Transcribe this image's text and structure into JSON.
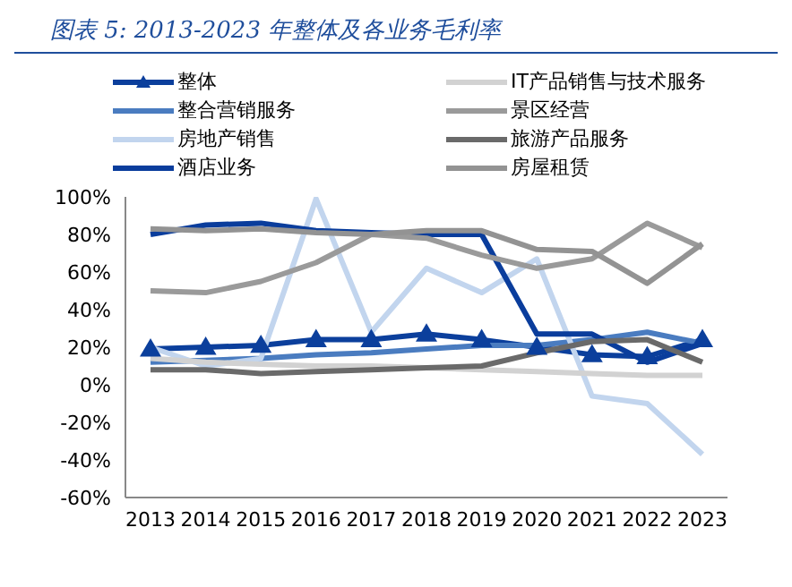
{
  "chart_data": {
    "type": "line",
    "title": "图表 5:  2013-2023 年整体及各业务毛利率",
    "categories": [
      "2013",
      "2014",
      "2015",
      "2016",
      "2017",
      "2018",
      "2019",
      "2020",
      "2021",
      "2022",
      "2023"
    ],
    "series": [
      {
        "name": "整体",
        "color": "#0b3f9c",
        "marker": "triangle",
        "values": [
          19,
          20,
          21,
          24,
          24,
          27,
          24,
          20,
          16,
          15,
          24
        ]
      },
      {
        "name": "整合营销服务",
        "color": "#4a7cc0",
        "values": [
          12,
          13,
          14,
          16,
          17,
          19,
          21,
          21,
          24,
          28,
          22
        ]
      },
      {
        "name": "房地产销售",
        "color": "#c2d5ee",
        "values": [
          20,
          10,
          14,
          99,
          28,
          62,
          49,
          67,
          -6,
          -10,
          -37
        ]
      },
      {
        "name": "酒店业务",
        "color": "#0a3d9c",
        "values": [
          80,
          85,
          86,
          82,
          81,
          80,
          80,
          27,
          27,
          12,
          22
        ]
      },
      {
        "name": "IT产品销售与技术服务",
        "color": "#d2d2d2",
        "values": [
          14,
          12,
          11,
          10,
          10,
          9,
          8,
          7,
          6,
          5,
          5
        ]
      },
      {
        "name": "景区经营",
        "color": "#9a9a9a",
        "values": [
          50,
          49,
          55,
          65,
          80,
          78,
          69,
          62,
          67,
          86,
          73
        ]
      },
      {
        "name": "旅游产品服务",
        "color": "#6a6a6a",
        "values": [
          8,
          8,
          6,
          7,
          8,
          9,
          10,
          17,
          23,
          24,
          12
        ]
      },
      {
        "name": "房屋租赁",
        "color": "#939393",
        "values": [
          83,
          82,
          83,
          81,
          80,
          82,
          82,
          72,
          71,
          54,
          75
        ]
      }
    ],
    "ylim": [
      -60,
      100
    ],
    "yticks": [
      {
        "value": -60,
        "label": "-60%"
      },
      {
        "value": -40,
        "label": "-40%"
      },
      {
        "value": -20,
        "label": "-20%"
      },
      {
        "value": 0,
        "label": "0%"
      },
      {
        "value": 20,
        "label": "20%"
      },
      {
        "value": 40,
        "label": "40%"
      },
      {
        "value": 60,
        "label": "60%"
      },
      {
        "value": 80,
        "label": "80%"
      },
      {
        "value": 100,
        "label": "100%"
      }
    ],
    "grid": false,
    "legend": "top",
    "line_style": "solid"
  }
}
